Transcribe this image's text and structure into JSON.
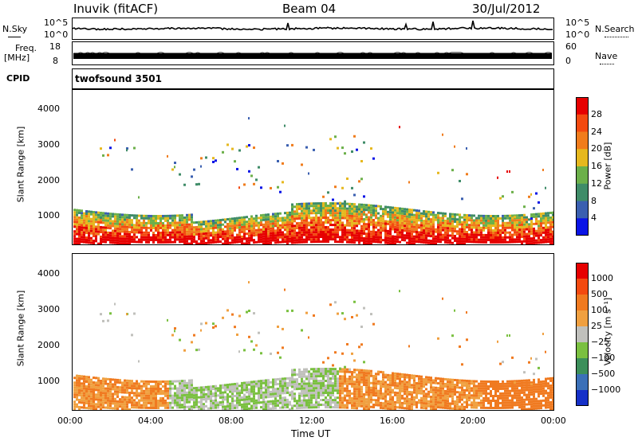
{
  "header": {
    "station": "Inuvik (fitACF)",
    "beam": "Beam 04",
    "date": "30/Jul/2012"
  },
  "noise_panel": {
    "left_label": "N.Sky",
    "right_label": "N.Search",
    "left_ticks": [
      "10^5",
      "10^0"
    ],
    "right_ticks": [
      "10^5",
      "10^0"
    ]
  },
  "freq_panel": {
    "left_label_1": "Freq.",
    "left_label_2": "[MHz]",
    "right_label": "Nave",
    "left_ticks": [
      "18",
      "8"
    ],
    "right_ticks": [
      "60",
      "0"
    ]
  },
  "cpid_panel": {
    "label": "CPID",
    "program": "twofsound 3501"
  },
  "chart_data": [
    {
      "type": "heatmap",
      "title": "",
      "ylabel": "Slant Range [km]",
      "xlabel": "",
      "yticks": [
        "1000",
        "2000",
        "3000",
        "4000"
      ],
      "ylim": [
        200,
        4500
      ],
      "colorbar_label": "Power [dB]",
      "colorbar_ticks": [
        "4",
        "8",
        "12",
        "16",
        "20",
        "24",
        "28"
      ],
      "colorbar_colors": [
        "#0a14e6",
        "#3a5fb0",
        "#3f8c68",
        "#6cb04a",
        "#e6b81e",
        "#f07c1c",
        "#f34a10",
        "#e60000"
      ]
    },
    {
      "type": "heatmap",
      "title": "",
      "ylabel": "Slant Range [km]",
      "xlabel": "Time UT",
      "yticks": [
        "1000",
        "2000",
        "3000",
        "4000"
      ],
      "ylim": [
        200,
        4500
      ],
      "xticks": [
        "00:00",
        "04:00",
        "08:00",
        "12:00",
        "16:00",
        "20:00",
        "00:00"
      ],
      "colorbar_label": "Velocity [m s⁻¹]",
      "colorbar_ticks": [
        "1000",
        "500",
        "100",
        "25",
        "−25",
        "−100",
        "−500",
        "−1000"
      ],
      "colorbar_colors": [
        "#1530c8",
        "#3b70b8",
        "#3c8f5a",
        "#7ac040",
        "#c0c0bc",
        "#f0a040",
        "#f07a20",
        "#f34a10",
        "#e60000"
      ]
    }
  ]
}
